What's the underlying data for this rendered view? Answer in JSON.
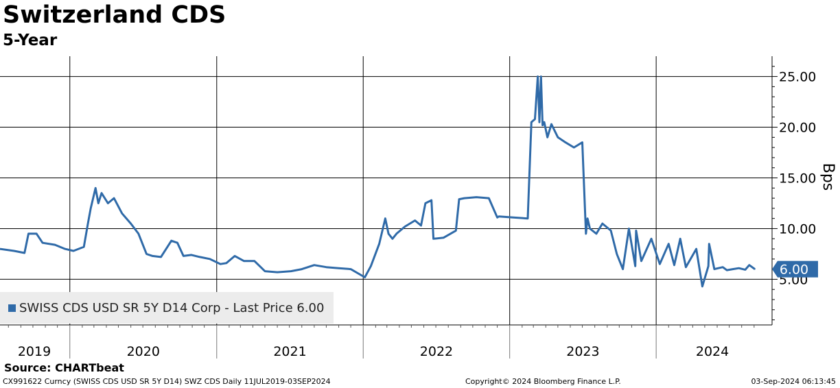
{
  "header": {
    "title": "Switzerland CDS",
    "subtitle": "5-Year"
  },
  "chart_data": {
    "type": "line",
    "title": "Switzerland CDS",
    "subtitle": "5-Year",
    "ylabel": "Bps",
    "ylim": [
      0.5,
      27
    ],
    "yticks": [
      5,
      10,
      15,
      20,
      25
    ],
    "ytick_labels": [
      "5.00",
      "10.00",
      "15.00",
      "20.00",
      "25.00"
    ],
    "xlim": [
      "2019-07-11",
      "2024-09-03"
    ],
    "x_labels": [
      "2019",
      "2020",
      "2021",
      "2022",
      "2023",
      "2024"
    ],
    "grid": true,
    "legend": "bottom-left",
    "last_price_label": "6.00",
    "series": [
      {
        "name": "SWISS CDS USD SR 5Y D14 Corp - Last Price 6.00",
        "color": "#2f6aa8",
        "x": [
          "2019-07-11",
          "2019-08-15",
          "2019-09-10",
          "2019-09-20",
          "2019-10-10",
          "2019-10-25",
          "2019-11-25",
          "2019-12-20",
          "2020-01-10",
          "2020-02-05",
          "2020-02-15",
          "2020-02-22",
          "2020-03-05",
          "2020-03-12",
          "2020-03-20",
          "2020-04-05",
          "2020-04-20",
          "2020-05-10",
          "2020-06-01",
          "2020-06-20",
          "2020-07-10",
          "2020-07-25",
          "2020-08-15",
          "2020-09-10",
          "2020-09-25",
          "2020-10-10",
          "2020-10-30",
          "2020-11-20",
          "2020-12-15",
          "2021-01-10",
          "2021-01-25",
          "2021-02-15",
          "2021-03-10",
          "2021-04-05",
          "2021-05-01",
          "2021-06-01",
          "2021-07-05",
          "2021-08-01",
          "2021-09-01",
          "2021-10-01",
          "2021-11-01",
          "2021-12-01",
          "2022-01-05",
          "2022-01-20",
          "2022-02-10",
          "2022-02-25",
          "2022-03-05",
          "2022-03-15",
          "2022-03-25",
          "2022-04-15",
          "2022-05-10",
          "2022-05-25",
          "2022-06-05",
          "2022-06-20",
          "2022-06-25",
          "2022-07-20",
          "2022-08-20",
          "2022-08-28",
          "2022-09-10",
          "2022-10-10",
          "2022-11-10",
          "2022-12-01",
          "2022-12-05",
          "2023-01-10",
          "2023-02-15",
          "2023-02-24",
          "2023-03-05",
          "2023-03-12",
          "2023-03-16",
          "2023-03-20",
          "2023-03-24",
          "2023-03-28",
          "2023-04-05",
          "2023-04-15",
          "2023-05-01",
          "2023-05-20",
          "2023-06-10",
          "2023-07-01",
          "2023-07-10",
          "2023-07-14",
          "2023-07-20",
          "2023-08-05",
          "2023-08-20",
          "2023-09-10",
          "2023-09-25",
          "2023-10-10",
          "2023-10-25",
          "2023-11-10",
          "2023-11-12",
          "2023-11-25",
          "2023-12-20",
          "2024-01-10",
          "2024-02-01",
          "2024-02-15",
          "2024-03-01",
          "2024-03-15",
          "2024-04-10",
          "2024-04-25",
          "2024-05-10",
          "2024-05-12",
          "2024-05-25",
          "2024-06-15",
          "2024-06-25",
          "2024-07-10",
          "2024-07-25",
          "2024-08-10",
          "2024-08-20",
          "2024-09-03"
        ],
        "values": [
          8.0,
          7.8,
          7.6,
          9.5,
          9.5,
          8.6,
          8.4,
          8.0,
          7.8,
          8.2,
          10.5,
          12.0,
          14.0,
          12.5,
          13.5,
          12.5,
          13.0,
          11.5,
          10.5,
          9.5,
          7.5,
          7.3,
          7.2,
          8.8,
          8.6,
          7.3,
          7.4,
          7.2,
          7.0,
          6.5,
          6.6,
          7.3,
          6.8,
          6.8,
          5.8,
          5.7,
          5.8,
          6.0,
          6.4,
          6.2,
          6.1,
          6.0,
          5.2,
          6.3,
          8.5,
          11.0,
          9.5,
          9.0,
          9.5,
          10.2,
          10.8,
          10.3,
          12.5,
          12.8,
          9.0,
          9.1,
          9.8,
          12.9,
          13.0,
          13.1,
          13.0,
          11.1,
          11.2,
          11.1,
          11.0,
          20.5,
          20.8,
          25.0,
          20.5,
          25.0,
          20.2,
          20.5,
          19.0,
          20.3,
          19.0,
          18.5,
          18.0,
          18.5,
          9.5,
          11.0,
          10.0,
          9.5,
          10.5,
          9.8,
          7.5,
          6.0,
          10.0,
          6.3,
          9.8,
          6.8,
          9.0,
          6.5,
          8.5,
          6.4,
          9.0,
          6.2,
          8.0,
          4.3,
          6.3,
          8.5,
          6.0,
          6.2,
          5.9,
          6.0,
          6.1,
          5.95,
          6.4,
          6.0
        ]
      }
    ]
  },
  "legend_label": "SWISS CDS USD SR 5Y D14 Corp - Last Price 6.00",
  "footer": {
    "source": "Source: CHARTbeat",
    "ticker_info": "CX991622 Curncy (SWISS CDS USD SR 5Y D14) SWZ CDS  Daily 11JUL2019-03SEP2024",
    "copyright": "Copyright© 2024 Bloomberg Finance L.P.",
    "timestamp": "03-Sep-2024 06:13:45"
  }
}
